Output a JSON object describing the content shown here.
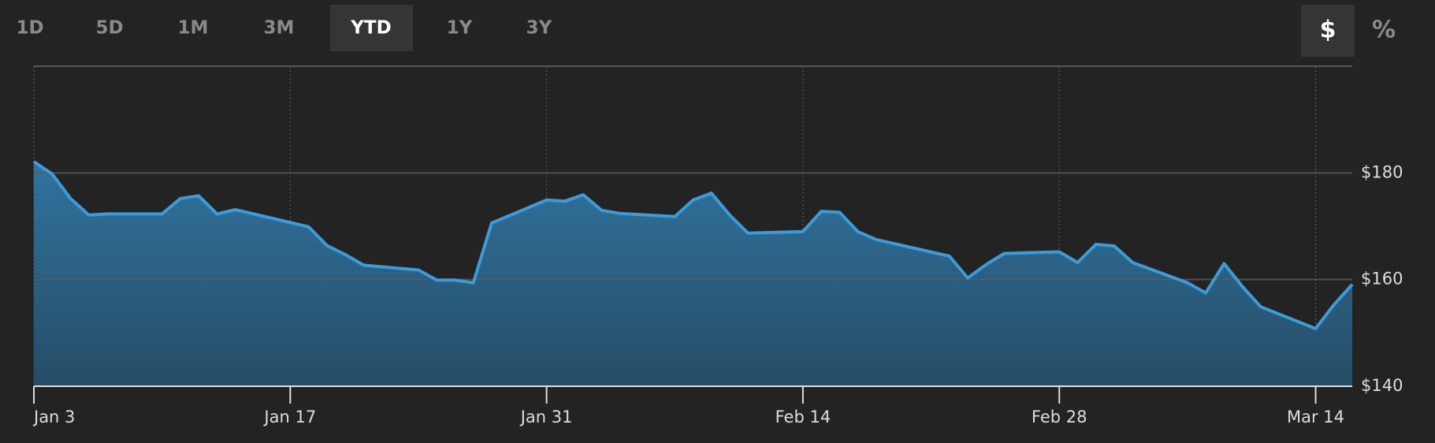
{
  "ranges": [
    "1D",
    "5D",
    "1M",
    "3M",
    "YTD",
    "1Y",
    "3Y"
  ],
  "units": [
    "$",
    "%"
  ],
  "chart_data": {
    "type": "area",
    "x": [
      "Jan 3",
      "Jan 4",
      "Jan 5",
      "Jan 6",
      "Jan 7",
      "Jan 10",
      "Jan 11",
      "Jan 12",
      "Jan 13",
      "Jan 14",
      "Jan 18",
      "Jan 19",
      "Jan 20",
      "Jan 21",
      "Jan 24",
      "Jan 25",
      "Jan 26",
      "Jan 27",
      "Jan 28",
      "Jan 31",
      "Feb 1",
      "Feb 2",
      "Feb 3",
      "Feb 4",
      "Feb 7",
      "Feb 8",
      "Feb 9",
      "Feb 10",
      "Feb 11",
      "Feb 14",
      "Feb 15",
      "Feb 16",
      "Feb 17",
      "Feb 18",
      "Feb 22",
      "Feb 23",
      "Feb 24",
      "Feb 25",
      "Feb 28",
      "Mar 1",
      "Mar 2",
      "Mar 3",
      "Mar 4",
      "Mar 7",
      "Mar 8",
      "Mar 9",
      "Mar 10",
      "Mar 11",
      "Mar 14",
      "Mar 15",
      "Mar 16"
    ],
    "values": [
      182.1,
      179.8,
      175.2,
      172.1,
      172.3,
      172.3,
      175.2,
      175.7,
      172.3,
      173.1,
      169.9,
      166.4,
      164.7,
      162.7,
      161.8,
      159.9,
      159.9,
      159.4,
      170.6,
      174.9,
      174.7,
      175.9,
      173.0,
      172.4,
      171.8,
      174.9,
      176.2,
      172.1,
      168.7,
      169.0,
      172.8,
      172.6,
      169.0,
      167.5,
      164.4,
      160.3,
      162.8,
      164.9,
      165.2,
      163.2,
      166.6,
      166.3,
      163.2,
      159.4,
      157.5,
      163.0,
      158.7,
      154.9,
      150.8,
      155.3,
      159.1
    ],
    "color": "#3d9bd8",
    "xlim": [
      "Jan 3",
      "Mar 16"
    ],
    "xticks": [
      "Jan 3",
      "Jan 17",
      "Jan 31",
      "Feb 14",
      "Feb 28",
      "Mar 14"
    ],
    "ylim": [
      140,
      200
    ],
    "yticks": [
      {
        "value": 140,
        "label": "$140"
      },
      {
        "value": 160,
        "label": "$160"
      },
      {
        "value": 180,
        "label": "$180"
      }
    ],
    "grid": true
  }
}
